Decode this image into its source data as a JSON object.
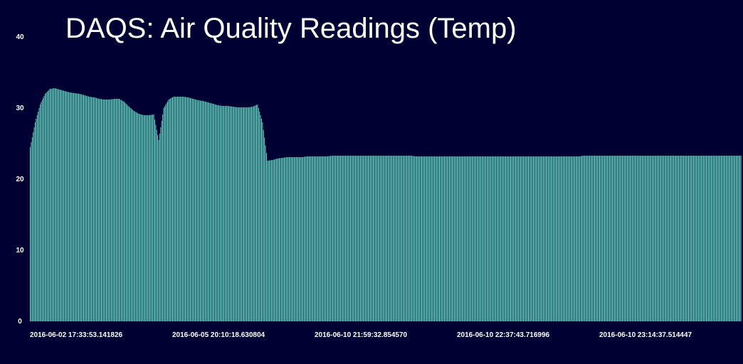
{
  "chart_data": {
    "type": "bar",
    "title": "DAQS: Air Quality Readings (Temp)",
    "xlabel": "",
    "ylabel": "",
    "ylim": [
      0,
      40
    ],
    "yticks": [
      "0",
      "10",
      "20",
      "30",
      "40"
    ],
    "xtick_labels": [
      "2016-06-02 17:33:53.141826",
      "2016-06-05 20:10:18.630804",
      "2016-06-10 21:59:32.854570",
      "2016-06-10 22:37:43.716996",
      "2016-06-10 23:14:37.514447"
    ],
    "bar_color": "#5fc9b8",
    "background": "#000033",
    "grid": false,
    "series": [
      {
        "values": [
          24.5,
          28.0,
          30.5,
          32.0,
          32.7,
          32.8,
          32.6,
          32.4,
          32.2,
          32.1,
          32.0,
          31.8,
          31.6,
          31.5,
          31.3,
          31.2,
          31.2,
          31.3,
          31.3,
          30.9,
          30.2,
          29.6,
          29.2,
          29.0,
          29.0,
          29.1,
          25.5,
          30.0,
          31.2,
          31.6,
          31.6,
          31.6,
          31.5,
          31.3,
          31.1,
          31.0,
          30.8,
          30.6,
          30.4,
          30.3,
          30.3,
          30.2,
          30.1,
          30.1,
          30.1,
          30.2,
          30.5,
          28.0,
          22.6,
          22.7,
          22.9,
          23.0,
          23.1,
          23.1,
          23.1,
          23.1,
          23.2,
          23.2,
          23.2,
          23.2,
          23.2,
          23.3,
          23.3,
          23.3,
          23.3,
          23.3,
          23.3,
          23.3,
          23.3,
          23.3,
          23.3,
          23.3,
          23.3,
          23.3,
          23.3,
          23.3,
          23.3,
          23.3,
          23.2,
          23.2,
          23.2,
          23.2,
          23.2,
          23.2,
          23.2,
          23.2,
          23.2,
          23.2,
          23.2,
          23.2,
          23.2,
          23.2,
          23.2,
          23.2,
          23.2,
          23.2,
          23.2,
          23.2,
          23.2,
          23.2,
          23.2,
          23.2,
          23.2,
          23.2,
          23.2,
          23.2,
          23.2,
          23.2,
          23.2,
          23.2,
          23.2,
          23.2,
          23.3,
          23.3,
          23.3,
          23.3,
          23.3,
          23.3,
          23.3,
          23.3,
          23.3,
          23.3,
          23.3,
          23.3,
          23.3,
          23.3,
          23.3,
          23.3,
          23.3,
          23.3,
          23.3,
          23.3,
          23.3,
          23.3,
          23.3,
          23.3,
          23.3,
          23.3,
          23.3,
          23.3,
          23.3,
          23.3,
          23.3,
          23.3
        ]
      }
    ]
  }
}
